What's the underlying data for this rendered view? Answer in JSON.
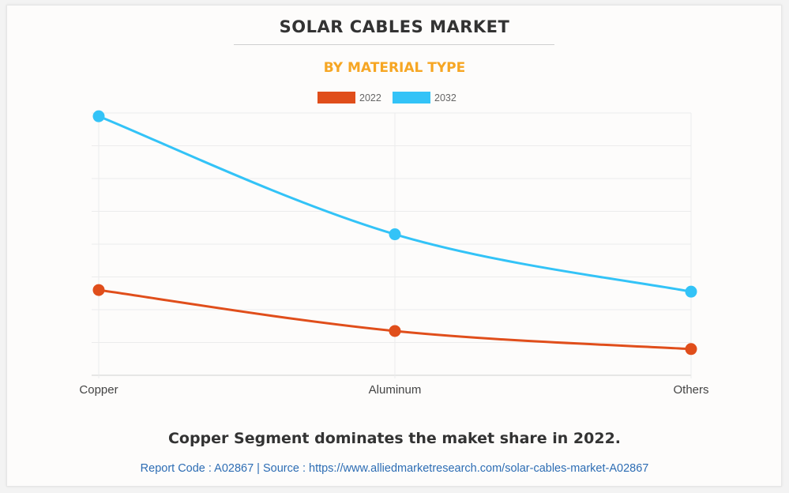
{
  "header": {
    "title": "SOLAR CABLES MARKET",
    "subtitle": "BY MATERIAL TYPE"
  },
  "footer": {
    "caption": "Copper Segment dominates the maket share in 2022.",
    "source": "Report Code : A02867  |  Source : https://www.alliedmarketresearch.com/solar-cables-market-A02867"
  },
  "chart_data": {
    "type": "line",
    "categories": [
      "Copper",
      "Aluminum",
      "Others"
    ],
    "series": [
      {
        "name": "2022",
        "color": "#e04e1b",
        "values": [
          2.6,
          1.35,
          0.8
        ]
      },
      {
        "name": "2032",
        "color": "#33c3f7",
        "values": [
          7.9,
          4.3,
          2.55
        ]
      }
    ],
    "ylim": [
      0,
      8
    ],
    "y_tick_labels_shown": false,
    "grid": true,
    "legend_position": "top-center",
    "curve": "smooth"
  }
}
